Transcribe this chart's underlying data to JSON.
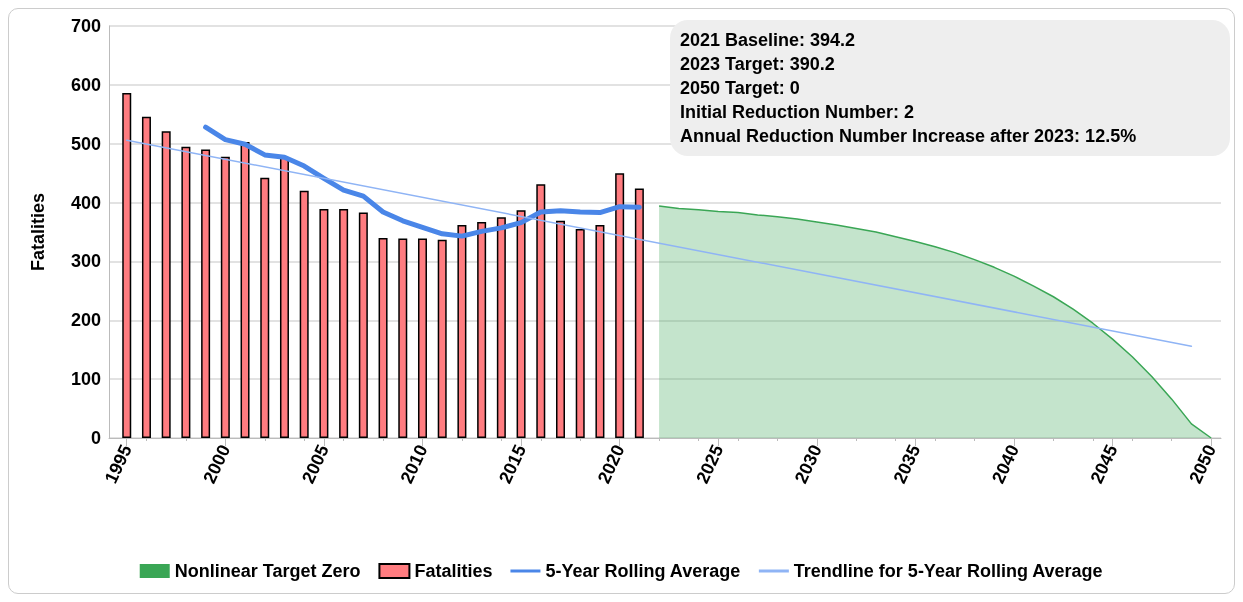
{
  "chart_data": {
    "type": "bar",
    "ylabel": "Fatalities",
    "xlim": [
      1994.1,
      2050.5
    ],
    "xticks": [
      1995,
      2000,
      2005,
      2010,
      2015,
      2020,
      2025,
      2030,
      2035,
      2040,
      2045,
      2050
    ],
    "ylim": [
      0,
      700
    ],
    "yticks": [
      0,
      100,
      200,
      300,
      400,
      500,
      600,
      700
    ],
    "grid": "y",
    "legend": "bottom",
    "annotations": [
      "2021 Baseline: 394.2",
      "2023 Target: 390.2",
      "2050 Target: 0",
      "Initial Reduction Number: 2",
      "Annual Reduction Number Increase after 2023: 12.5%"
    ],
    "series": [
      {
        "name": "Nonlinear Target Zero",
        "type": "area",
        "color": "#3aa655",
        "x": [
          2022,
          2023,
          2024,
          2025,
          2026,
          2027,
          2028,
          2029,
          2030,
          2031,
          2032,
          2033,
          2034,
          2035,
          2036,
          2037,
          2038,
          2039,
          2040,
          2041,
          2042,
          2043,
          2044,
          2045,
          2046,
          2047,
          2048,
          2049,
          2050
        ],
        "values": [
          394,
          390,
          388,
          385,
          383,
          379,
          376,
          372,
          367,
          362,
          356,
          350,
          342,
          334,
          325,
          315,
          303,
          290,
          275,
          258,
          240,
          219,
          195,
          168,
          138,
          104,
          66,
          24,
          0
        ]
      },
      {
        "name": "Fatalities",
        "color": "#ff7c80",
        "x": [
          1995,
          1996,
          1997,
          1998,
          1999,
          2000,
          2001,
          2002,
          2003,
          2004,
          2005,
          2006,
          2007,
          2008,
          2009,
          2010,
          2011,
          2012,
          2013,
          2014,
          2015,
          2016,
          2017,
          2018,
          2019,
          2020,
          2021
        ],
        "values": [
          586,
          546,
          521,
          495,
          490,
          478,
          503,
          442,
          477,
          420,
          389,
          389,
          383,
          340,
          339,
          339,
          337,
          362,
          367,
          375,
          387,
          431,
          369,
          355,
          362,
          450,
          424
        ]
      },
      {
        "name": "5-Year Rolling Average",
        "type": "line",
        "color": "#4a86e8",
        "x": [
          1999,
          2000,
          2001,
          2002,
          2003,
          2004,
          2005,
          2006,
          2007,
          2008,
          2009,
          2010,
          2011,
          2012,
          2013,
          2014,
          2015,
          2016,
          2017,
          2018,
          2019,
          2020,
          2021
        ],
        "values": [
          528,
          507,
          499,
          481,
          477,
          462,
          441,
          421,
          411,
          384,
          369,
          358,
          347,
          343,
          351,
          357,
          366,
          384,
          386,
          384,
          383,
          393,
          392
        ]
      },
      {
        "name": "Trendline for 5-Year Rolling Average",
        "type": "line",
        "color": "#8fb4f5",
        "x": [
          1995,
          2049
        ],
        "values": [
          506,
          156
        ]
      }
    ]
  }
}
